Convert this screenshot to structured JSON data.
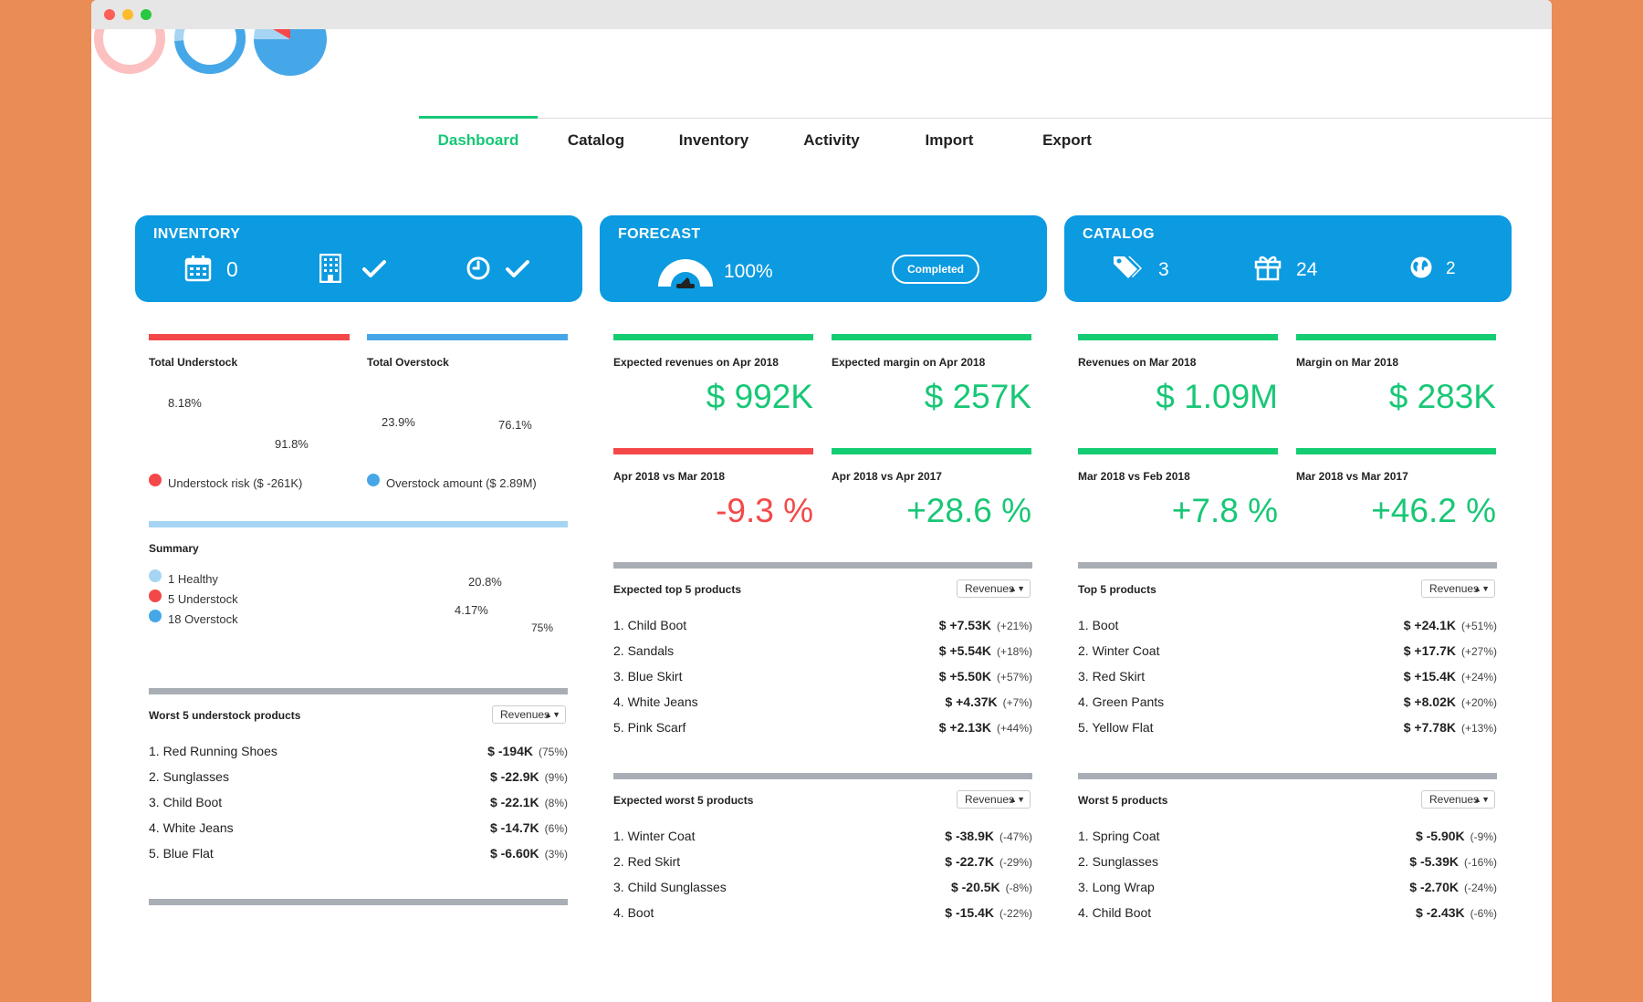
{
  "tabs": [
    "Dashboard",
    "Catalog",
    "Inventory",
    "Activity",
    "Import",
    "Export"
  ],
  "active_tab": "Dashboard",
  "cards": {
    "inventory": {
      "title": "INVENTORY",
      "calendar_count": "0"
    },
    "forecast": {
      "title": "FORECAST",
      "percent": "100%",
      "badge": "Completed"
    },
    "catalog": {
      "title": "CATALOG",
      "tags_count": "3",
      "gifts_count": "24",
      "globe_count": "2"
    }
  },
  "inventory_panel": {
    "understock": {
      "title": "Total Understock",
      "small_pct": "8.18%",
      "large_pct": "91.8%",
      "legend": "Understock risk ($ -261K)"
    },
    "overstock": {
      "title": "Total Overstock",
      "small_pct": "23.9%",
      "large_pct": "76.1%",
      "legend": "Overstock amount ($ 2.89M)"
    },
    "summary": {
      "title": "Summary",
      "items": [
        "1 Healthy",
        "5 Understock",
        "18 Overstock"
      ],
      "pie_labels": [
        "20.8%",
        "4.17%",
        "75%"
      ]
    },
    "worst_understock": {
      "title": "Worst 5 understock products",
      "select": "Revenues",
      "rows": [
        {
          "name": "1. Red Running Shoes",
          "value": "$ -194K",
          "pct": "(75%)"
        },
        {
          "name": "2. Sunglasses",
          "value": "$ -22.9K",
          "pct": "(9%)"
        },
        {
          "name": "3. Child Boot",
          "value": "$ -22.1K",
          "pct": "(8%)"
        },
        {
          "name": "4. White Jeans",
          "value": "$ -14.7K",
          "pct": "(6%)"
        },
        {
          "name": "5. Blue Flat",
          "value": "$ -6.60K",
          "pct": "(3%)"
        }
      ]
    }
  },
  "forecast_panel": {
    "kpi1": {
      "label": "Expected revenues on Apr 2018",
      "value": "$ 992K"
    },
    "kpi2": {
      "label": "Expected margin on Apr 2018",
      "value": "$ 257K"
    },
    "kpi3": {
      "label": "Apr 2018 vs Mar 2018",
      "value": "-9.3 %"
    },
    "kpi4": {
      "label": "Apr 2018 vs Apr 2017",
      "value": "+28.6 %"
    },
    "top": {
      "title": "Expected top 5 products",
      "select": "Revenues",
      "rows": [
        {
          "name": "1. Child Boot",
          "value": "$ +7.53K",
          "pct": "(+21%)"
        },
        {
          "name": "2. Sandals",
          "value": "$ +5.54K",
          "pct": "(+18%)"
        },
        {
          "name": "3. Blue Skirt",
          "value": "$ +5.50K",
          "pct": "(+57%)"
        },
        {
          "name": "4. White Jeans",
          "value": "$ +4.37K",
          "pct": "(+7%)"
        },
        {
          "name": "5. Pink Scarf",
          "value": "$ +2.13K",
          "pct": "(+44%)"
        }
      ]
    },
    "worst": {
      "title": "Expected worst 5 products",
      "select": "Revenues",
      "rows": [
        {
          "name": "1. Winter Coat",
          "value": "$ -38.9K",
          "pct": "(-47%)"
        },
        {
          "name": "2. Red Skirt",
          "value": "$ -22.7K",
          "pct": "(-29%)"
        },
        {
          "name": "3. Child Sunglasses",
          "value": "$ -20.5K",
          "pct": "(-8%)"
        },
        {
          "name": "4. Boot",
          "value": "$ -15.4K",
          "pct": "(-22%)"
        }
      ]
    }
  },
  "catalog_panel": {
    "kpi1": {
      "label": "Revenues on Mar 2018",
      "value": "$ 1.09M"
    },
    "kpi2": {
      "label": "Margin on Mar 2018",
      "value": "$ 283K"
    },
    "kpi3": {
      "label": "Mar 2018 vs Feb 2018",
      "value": "+7.8 %"
    },
    "kpi4": {
      "label": "Mar 2018 vs Mar 2017",
      "value": "+46.2 %"
    },
    "top": {
      "title": "Top 5 products",
      "select": "Revenues",
      "rows": [
        {
          "name": "1. Boot",
          "value": "$ +24.1K",
          "pct": "(+51%)"
        },
        {
          "name": "2. Winter Coat",
          "value": "$ +17.7K",
          "pct": "(+27%)"
        },
        {
          "name": "3. Red Skirt",
          "value": "$ +15.4K",
          "pct": "(+24%)"
        },
        {
          "name": "4. Green Pants",
          "value": "$ +8.02K",
          "pct": "(+20%)"
        },
        {
          "name": "5. Yellow Flat",
          "value": "$ +7.78K",
          "pct": "(+13%)"
        }
      ]
    },
    "worst": {
      "title": "Worst 5 products",
      "select": "Revenues",
      "rows": [
        {
          "name": "1. Spring Coat",
          "value": "$ -5.90K",
          "pct": "(-9%)"
        },
        {
          "name": "2. Sunglasses",
          "value": "$ -5.39K",
          "pct": "(-16%)"
        },
        {
          "name": "3. Long Wrap",
          "value": "$ -2.70K",
          "pct": "(-24%)"
        },
        {
          "name": "4. Child Boot",
          "value": "$ -2.43K",
          "pct": "(-6%)"
        }
      ]
    }
  },
  "colors": {
    "accent_green": "#16c776",
    "blue": "#0c9ae0",
    "red": "#f44848",
    "light_red": "#fcc0c0",
    "light_blue": "#a5d5f3"
  }
}
